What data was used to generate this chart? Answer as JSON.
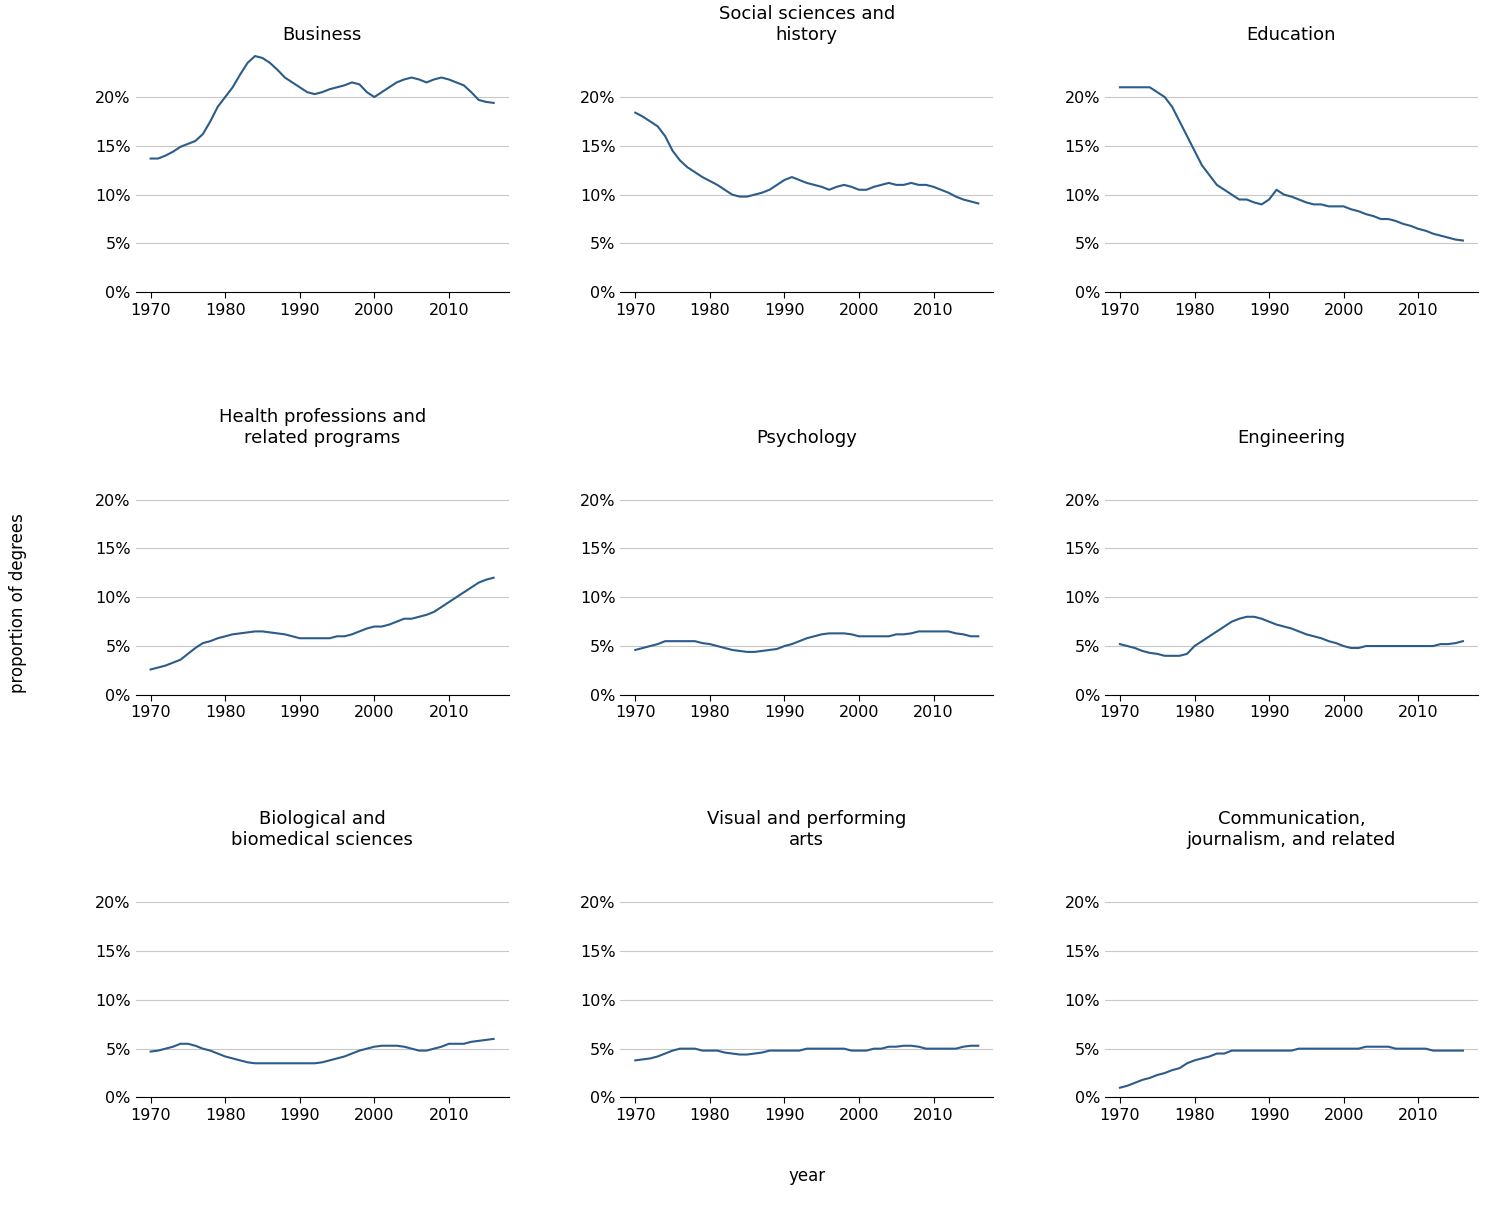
{
  "years": [
    1970,
    1971,
    1972,
    1973,
    1974,
    1975,
    1976,
    1977,
    1978,
    1979,
    1980,
    1981,
    1982,
    1983,
    1984,
    1985,
    1986,
    1987,
    1988,
    1989,
    1990,
    1991,
    1992,
    1993,
    1994,
    1995,
    1996,
    1997,
    1998,
    1999,
    2000,
    2001,
    2002,
    2003,
    2004,
    2005,
    2006,
    2007,
    2008,
    2009,
    2010,
    2011,
    2012,
    2013,
    2014,
    2015,
    2016
  ],
  "series": {
    "Business": [
      13.7,
      13.7,
      14.0,
      14.4,
      14.9,
      15.2,
      15.5,
      16.2,
      17.5,
      19.0,
      20.0,
      21.0,
      22.3,
      23.5,
      24.2,
      24.0,
      23.5,
      22.8,
      22.0,
      21.5,
      21.0,
      20.5,
      20.3,
      20.5,
      20.8,
      21.0,
      21.2,
      21.5,
      21.3,
      20.5,
      20.0,
      20.5,
      21.0,
      21.5,
      21.8,
      22.0,
      21.8,
      21.5,
      21.8,
      22.0,
      21.8,
      21.5,
      21.2,
      20.5,
      19.7,
      19.5,
      19.4
    ],
    "Social sciences and\nhistory": [
      18.4,
      18.0,
      17.5,
      17.0,
      16.0,
      14.5,
      13.5,
      12.8,
      12.3,
      11.8,
      11.4,
      11.0,
      10.5,
      10.0,
      9.8,
      9.8,
      10.0,
      10.2,
      10.5,
      11.0,
      11.5,
      11.8,
      11.5,
      11.2,
      11.0,
      10.8,
      10.5,
      10.8,
      11.0,
      10.8,
      10.5,
      10.5,
      10.8,
      11.0,
      11.2,
      11.0,
      11.0,
      11.2,
      11.0,
      11.0,
      10.8,
      10.5,
      10.2,
      9.8,
      9.5,
      9.3,
      9.1
    ],
    "Education": [
      21.0,
      21.0,
      21.0,
      21.0,
      21.0,
      20.5,
      20.0,
      19.0,
      17.5,
      16.0,
      14.5,
      13.0,
      12.0,
      11.0,
      10.5,
      10.0,
      9.5,
      9.5,
      9.2,
      9.0,
      9.5,
      10.5,
      10.0,
      9.8,
      9.5,
      9.2,
      9.0,
      9.0,
      8.8,
      8.8,
      8.8,
      8.5,
      8.3,
      8.0,
      7.8,
      7.5,
      7.5,
      7.3,
      7.0,
      6.8,
      6.5,
      6.3,
      6.0,
      5.8,
      5.6,
      5.4,
      5.3
    ],
    "Health professions and\nrelated programs": [
      2.6,
      2.8,
      3.0,
      3.3,
      3.6,
      4.2,
      4.8,
      5.3,
      5.5,
      5.8,
      6.0,
      6.2,
      6.3,
      6.4,
      6.5,
      6.5,
      6.4,
      6.3,
      6.2,
      6.0,
      5.8,
      5.8,
      5.8,
      5.8,
      5.8,
      6.0,
      6.0,
      6.2,
      6.5,
      6.8,
      7.0,
      7.0,
      7.2,
      7.5,
      7.8,
      7.8,
      8.0,
      8.2,
      8.5,
      9.0,
      9.5,
      10.0,
      10.5,
      11.0,
      11.5,
      11.8,
      12.0
    ],
    "Psychology": [
      4.6,
      4.8,
      5.0,
      5.2,
      5.5,
      5.5,
      5.5,
      5.5,
      5.5,
      5.3,
      5.2,
      5.0,
      4.8,
      4.6,
      4.5,
      4.4,
      4.4,
      4.5,
      4.6,
      4.7,
      5.0,
      5.2,
      5.5,
      5.8,
      6.0,
      6.2,
      6.3,
      6.3,
      6.3,
      6.2,
      6.0,
      6.0,
      6.0,
      6.0,
      6.0,
      6.2,
      6.2,
      6.3,
      6.5,
      6.5,
      6.5,
      6.5,
      6.5,
      6.3,
      6.2,
      6.0,
      6.0
    ],
    "Engineering": [
      5.2,
      5.0,
      4.8,
      4.5,
      4.3,
      4.2,
      4.0,
      4.0,
      4.0,
      4.2,
      5.0,
      5.5,
      6.0,
      6.5,
      7.0,
      7.5,
      7.8,
      8.0,
      8.0,
      7.8,
      7.5,
      7.2,
      7.0,
      6.8,
      6.5,
      6.2,
      6.0,
      5.8,
      5.5,
      5.3,
      5.0,
      4.8,
      4.8,
      5.0,
      5.0,
      5.0,
      5.0,
      5.0,
      5.0,
      5.0,
      5.0,
      5.0,
      5.0,
      5.2,
      5.2,
      5.3,
      5.5
    ],
    "Biological and\nbiomedical sciences": [
      4.7,
      4.8,
      5.0,
      5.2,
      5.5,
      5.5,
      5.3,
      5.0,
      4.8,
      4.5,
      4.2,
      4.0,
      3.8,
      3.6,
      3.5,
      3.5,
      3.5,
      3.5,
      3.5,
      3.5,
      3.5,
      3.5,
      3.5,
      3.6,
      3.8,
      4.0,
      4.2,
      4.5,
      4.8,
      5.0,
      5.2,
      5.3,
      5.3,
      5.3,
      5.2,
      5.0,
      4.8,
      4.8,
      5.0,
      5.2,
      5.5,
      5.5,
      5.5,
      5.7,
      5.8,
      5.9,
      6.0
    ],
    "Visual and performing\narts": [
      3.8,
      3.9,
      4.0,
      4.2,
      4.5,
      4.8,
      5.0,
      5.0,
      5.0,
      4.8,
      4.8,
      4.8,
      4.6,
      4.5,
      4.4,
      4.4,
      4.5,
      4.6,
      4.8,
      4.8,
      4.8,
      4.8,
      4.8,
      5.0,
      5.0,
      5.0,
      5.0,
      5.0,
      5.0,
      4.8,
      4.8,
      4.8,
      5.0,
      5.0,
      5.2,
      5.2,
      5.3,
      5.3,
      5.2,
      5.0,
      5.0,
      5.0,
      5.0,
      5.0,
      5.2,
      5.3,
      5.3
    ],
    "Communication,\njournalism, and related": [
      1.0,
      1.2,
      1.5,
      1.8,
      2.0,
      2.3,
      2.5,
      2.8,
      3.0,
      3.5,
      3.8,
      4.0,
      4.2,
      4.5,
      4.5,
      4.8,
      4.8,
      4.8,
      4.8,
      4.8,
      4.8,
      4.8,
      4.8,
      4.8,
      5.0,
      5.0,
      5.0,
      5.0,
      5.0,
      5.0,
      5.0,
      5.0,
      5.0,
      5.2,
      5.2,
      5.2,
      5.2,
      5.0,
      5.0,
      5.0,
      5.0,
      5.0,
      4.8,
      4.8,
      4.8,
      4.8,
      4.8
    ]
  },
  "line_color": "#2B5C8A",
  "grid_color": "#C8C8C8",
  "background_color": "#FFFFFF",
  "ylim": [
    0,
    0.25
  ],
  "yticks": [
    0,
    0.05,
    0.1,
    0.15,
    0.2
  ],
  "xticks": [
    1970,
    1980,
    1990,
    2000,
    2010
  ],
  "ylabel": "proportion of degrees",
  "xlabel": "year",
  "title_fontsize": 13,
  "label_fontsize": 12,
  "tick_fontsize": 11.5
}
